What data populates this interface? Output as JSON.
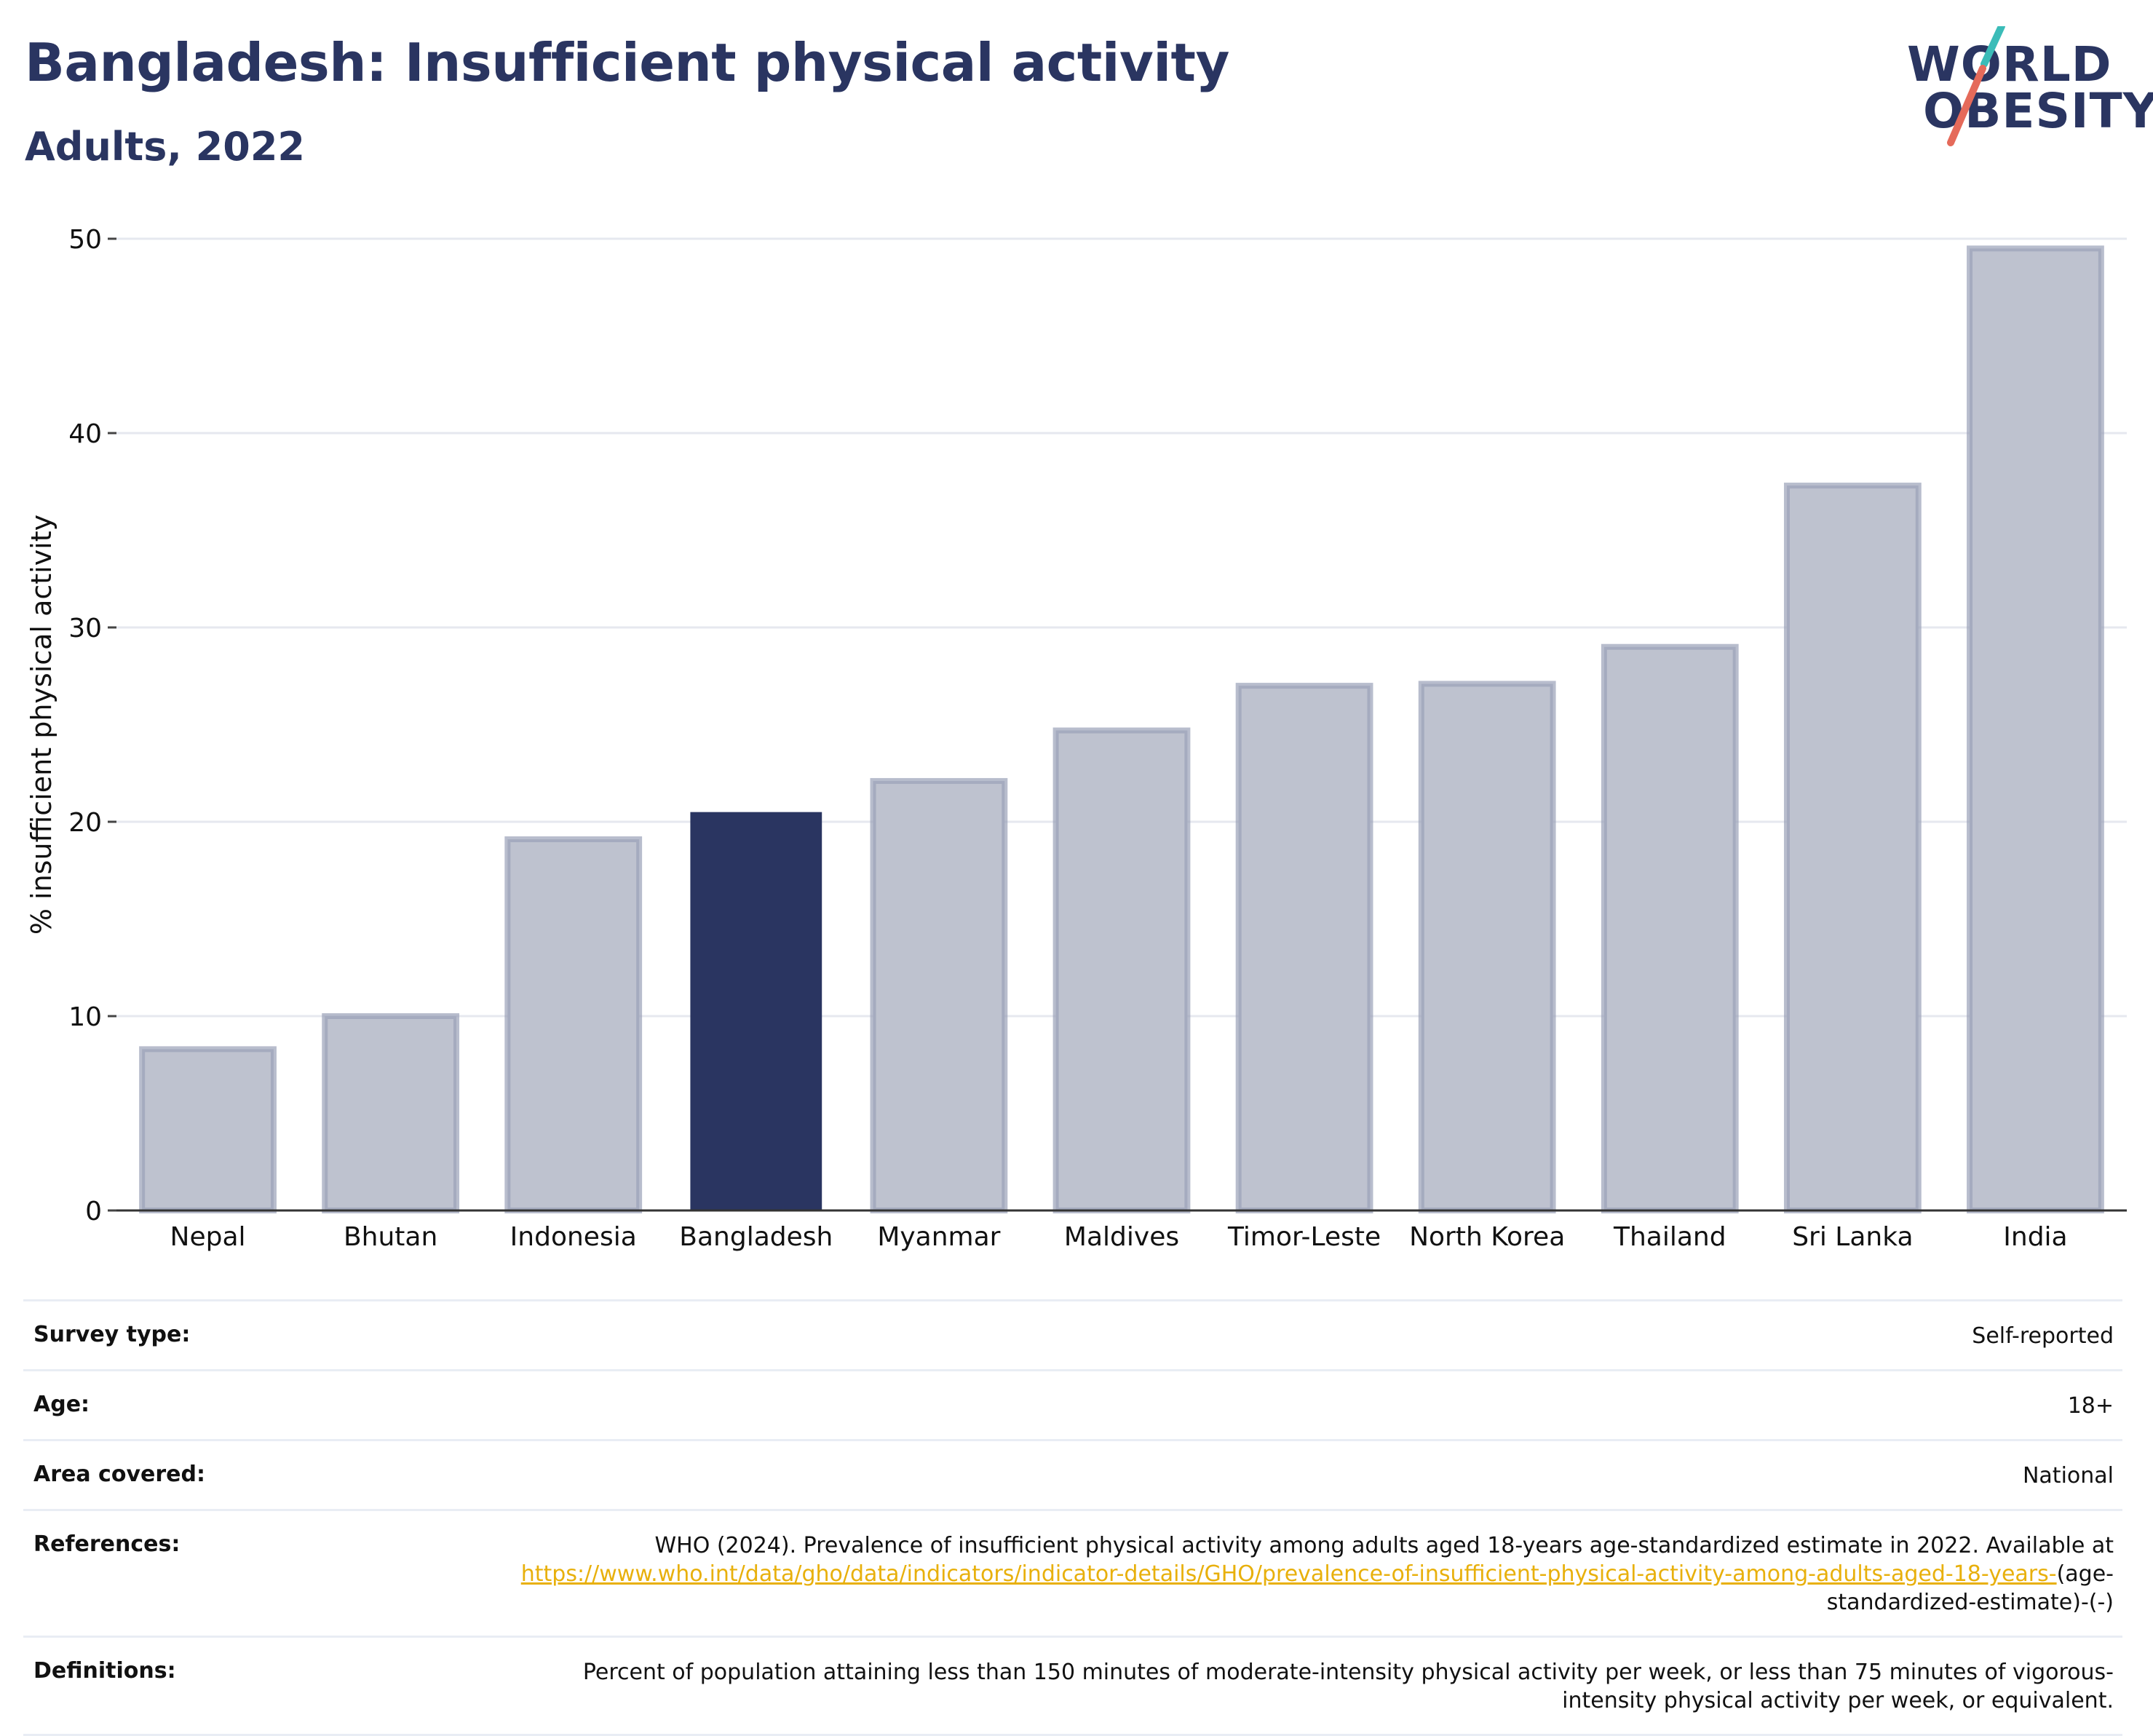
{
  "header": {
    "title": "Bangladesh: Insufficient physical activity",
    "subtitle": "Adults, 2022"
  },
  "logo": {
    "line1": "WORLD",
    "line2": "OBESITY"
  },
  "colors": {
    "highlight": "#2a3561",
    "bar_fill": "#bec2cf",
    "bar_stroke": "#9aa1b8",
    "grid": "#e6e8ef",
    "logo_teal": "#3bbcb8",
    "logo_coral": "#e56a5a",
    "link": "#e8b00c"
  },
  "chart_data": {
    "type": "bar",
    "categories": [
      "Nepal",
      "Bhutan",
      "Indonesia",
      "Bangladesh",
      "Myanmar",
      "Maldives",
      "Timor-Leste",
      "North Korea",
      "Thailand",
      "Sri Lanka",
      "India"
    ],
    "values": [
      8.3,
      10.0,
      19.1,
      20.5,
      22.1,
      24.7,
      27.0,
      27.1,
      29.0,
      37.3,
      49.5
    ],
    "highlight": "Bangladesh",
    "ylabel": "% insufficient physical activity",
    "xlabel": "",
    "ylim": [
      0,
      50
    ],
    "yticks": [
      0,
      10,
      20,
      30,
      40,
      50
    ],
    "grid": true
  },
  "meta": {
    "survey_type_label": "Survey type:",
    "survey_type_value": "Self-reported",
    "age_label": "Age:",
    "age_value": "18+",
    "area_label": "Area covered:",
    "area_value": "National",
    "references_label": "References:",
    "references_text": "WHO (2024). Prevalence of insufficient physical activity among adults aged 18-years age-standardized estimate in 2022. Available at",
    "references_link": "https://www.who.int/data/gho/data/indicators/indicator-details/GHO/prevalence-of-insufficient-physical-activity-among-adults-aged-18-years-",
    "references_suffix": "(age-standardized-estimate)-(-)",
    "definitions_label": "Definitions:",
    "definitions_value": "Percent of population attaining less than 150 minutes of moderate-intensity physical activity per week, or less than 75 minutes of vigorous-intensity physical activity per week, or equivalent."
  }
}
